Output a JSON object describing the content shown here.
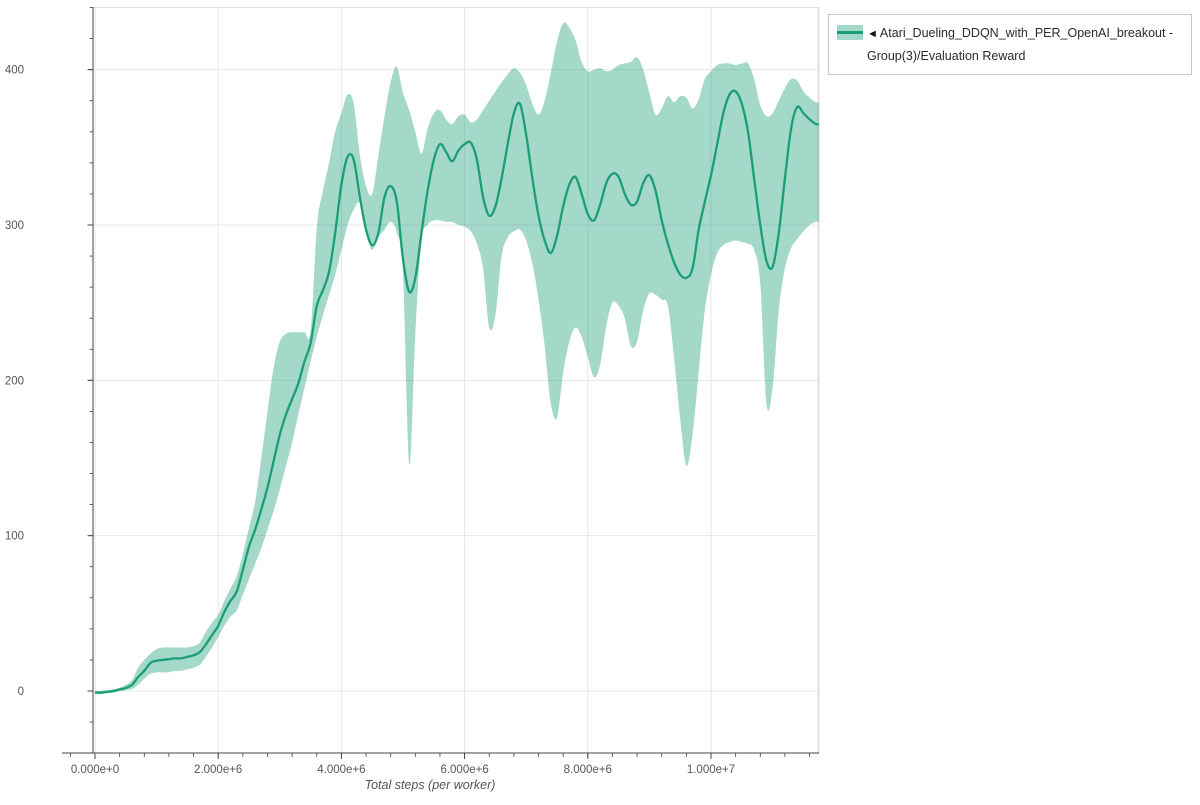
{
  "legend": {
    "marker": "◄",
    "label": "Atari_Dueling_DDQN_with_PER_OpenAI_breakout - Group(3)/Evaluation Reward"
  },
  "chart_data": {
    "type": "line",
    "title": "",
    "xlabel": "Total steps (per worker)",
    "ylabel": "",
    "grid": true,
    "legend_position": "top-right",
    "x_range_e6": [
      -0.53,
      11.75
    ],
    "ylim": [
      -40,
      440
    ],
    "x_ticks": {
      "values_e6": [
        0,
        2,
        4,
        6,
        8,
        10
      ],
      "labels": [
        "0.000e+0",
        "2.000e+6",
        "4.000e+6",
        "6.000e+6",
        "8.000e+6",
        "1.000e+7"
      ]
    },
    "x_minor_ticks_e6": {
      "start": -0.4,
      "end": 11.6,
      "step": 0.4
    },
    "y_ticks": {
      "values": [
        0,
        100,
        200,
        300,
        400
      ],
      "labels": [
        "0",
        "100",
        "200",
        "300",
        "400"
      ]
    },
    "y_minor_ticks": {
      "start": -40,
      "end": 440,
      "step": 20
    },
    "series": [
      {
        "name": "Atari_Dueling_DDQN_with_PER_OpenAI_breakout - Group(3)/Evaluation Reward",
        "line_color": "#1b9e77",
        "band_color": "rgba(27,158,119,0.40)",
        "x_start_e6": 0,
        "x_step_e6": 0.1,
        "x_extend_e6": 11.75,
        "mean": [
          -1,
          -1,
          -0.5,
          0,
          1,
          2,
          4,
          9,
          13,
          18,
          19.5,
          20,
          20.5,
          21,
          21,
          22,
          23,
          25,
          30,
          36,
          42,
          51,
          58,
          64,
          78,
          93,
          104,
          117,
          131,
          148,
          165,
          178,
          188,
          198,
          212,
          224,
          248,
          258,
          270,
          295,
          326,
          344,
          342,
          318,
          297,
          287,
          295,
          318,
          325,
          315,
          278,
          257,
          266,
          295,
          322,
          342,
          352,
          347,
          341,
          348,
          352,
          353,
          342,
          318,
          306,
          312,
          330,
          352,
          372,
          378,
          358,
          330,
          306,
          290,
          282,
          293,
          312,
          326,
          331,
          320,
          307,
          303,
          313,
          327,
          333,
          331,
          320,
          313,
          315,
          327,
          332,
          322,
          303,
          288,
          276,
          268,
          266,
          272,
          297,
          315,
          332,
          352,
          372,
          384,
          386,
          378,
          360,
          330,
          300,
          277,
          273,
          295,
          330,
          362,
          376,
          372,
          368,
          365
        ],
        "band_low": [
          -2,
          -2,
          -1.5,
          -1,
          0,
          0.5,
          1.5,
          4,
          8,
          11,
          12,
          12,
          12,
          13,
          13,
          14,
          15,
          17,
          22,
          28,
          35,
          42,
          48,
          52,
          62,
          72,
          82,
          92,
          104,
          116,
          130,
          145,
          160,
          178,
          195,
          212,
          228,
          242,
          255,
          268,
          284,
          300,
          310,
          314,
          295,
          284,
          292,
          297,
          302,
          295,
          270,
          146,
          230,
          290,
          300,
          303,
          303,
          302,
          302,
          300,
          299,
          296,
          288,
          272,
          234,
          242,
          280,
          292,
          296,
          297,
          290,
          275,
          252,
          222,
          185,
          176,
          205,
          225,
          234,
          228,
          215,
          202,
          210,
          235,
          250,
          248,
          240,
          222,
          225,
          245,
          256,
          255,
          252,
          248,
          215,
          175,
          145,
          165,
          205,
          245,
          268,
          282,
          287,
          289,
          290,
          289,
          288,
          284,
          262,
          185,
          195,
          245,
          272,
          285,
          291,
          296,
          300,
          302
        ],
        "band_high": [
          0,
          0,
          0.5,
          1,
          2,
          4,
          7,
          15,
          20,
          24,
          27,
          28,
          28,
          28,
          28,
          28,
          29,
          31,
          38,
          44,
          49,
          58,
          66,
          74,
          88,
          105,
          122,
          150,
          180,
          208,
          225,
          230,
          231,
          231,
          231,
          232,
          298,
          322,
          340,
          360,
          372,
          384,
          378,
          345,
          325,
          320,
          345,
          370,
          392,
          402,
          385,
          374,
          360,
          346,
          362,
          372,
          374,
          368,
          365,
          370,
          371,
          366,
          368,
          374,
          380,
          386,
          392,
          397,
          401,
          398,
          390,
          378,
          371,
          380,
          398,
          418,
          430,
          427,
          419,
          405,
          399,
          400,
          401,
          399,
          400,
          403,
          404,
          405,
          408,
          400,
          385,
          371,
          375,
          383,
          379,
          383,
          382,
          375,
          381,
          394,
          399,
          403,
          404,
          404,
          403,
          404,
          404,
          394,
          377,
          370,
          372,
          380,
          388,
          394,
          393,
          386,
          382,
          379
        ]
      }
    ]
  }
}
